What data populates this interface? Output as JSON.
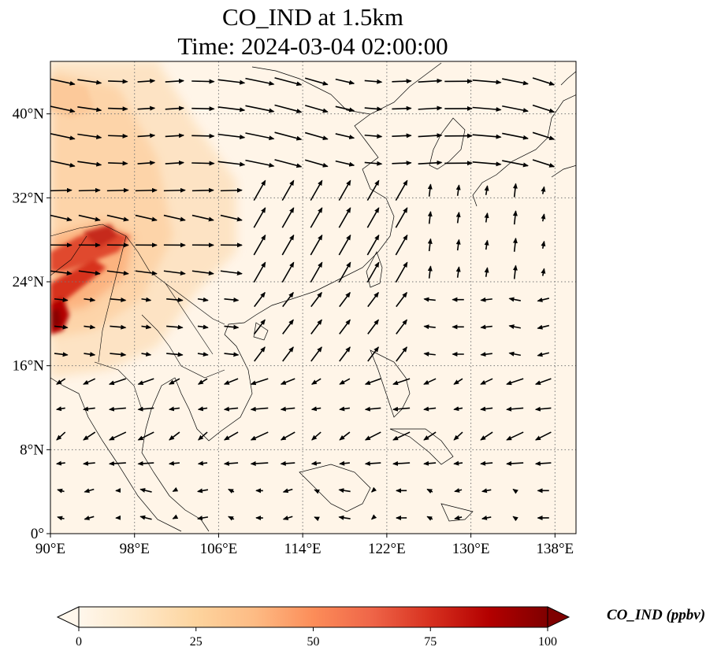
{
  "title": {
    "line1": "CO_IND at 1.5km",
    "line2": "Time: 2024-03-04 02:00:00"
  },
  "map": {
    "extent": {
      "lon_min": 90,
      "lon_max": 140,
      "lat_min": 0,
      "lat_max": 45
    },
    "x_ticks": [
      {
        "lon": 90,
        "label": "90°E"
      },
      {
        "lon": 98,
        "label": "98°E"
      },
      {
        "lon": 106,
        "label": "106°E"
      },
      {
        "lon": 114,
        "label": "114°E"
      },
      {
        "lon": 122,
        "label": "122°E"
      },
      {
        "lon": 130,
        "label": "130°E"
      },
      {
        "lon": 138,
        "label": "138°E"
      }
    ],
    "y_ticks": [
      {
        "lat": 0,
        "label": "0°"
      },
      {
        "lat": 8,
        "label": "8°N"
      },
      {
        "lat": 16,
        "label": "16°N"
      },
      {
        "lat": 24,
        "label": "24°N"
      },
      {
        "lat": 32,
        "label": "32°N"
      },
      {
        "lat": 40,
        "label": "40°N"
      }
    ],
    "gridlines": "dotted",
    "field": "CO_IND",
    "high_concentration_region": "southwest (Myanmar / northeast India / Yunnan)",
    "wind_vectors": "black arrows"
  },
  "colorbar": {
    "label": "CO_IND (ppbv)",
    "min": 0,
    "max": 100,
    "ticks": [
      {
        "value": 0,
        "label": "0"
      },
      {
        "value": 25,
        "label": "25"
      },
      {
        "value": 50,
        "label": "50"
      },
      {
        "value": 75,
        "label": "75"
      },
      {
        "value": 100,
        "label": "100"
      }
    ],
    "extend": "both",
    "colormap": "OrRd",
    "colors": [
      "#fff7ec",
      "#fee8c8",
      "#fdd49e",
      "#fdbb84",
      "#fc8d59",
      "#ef6548",
      "#d7301f",
      "#b30000",
      "#7f0000"
    ]
  }
}
